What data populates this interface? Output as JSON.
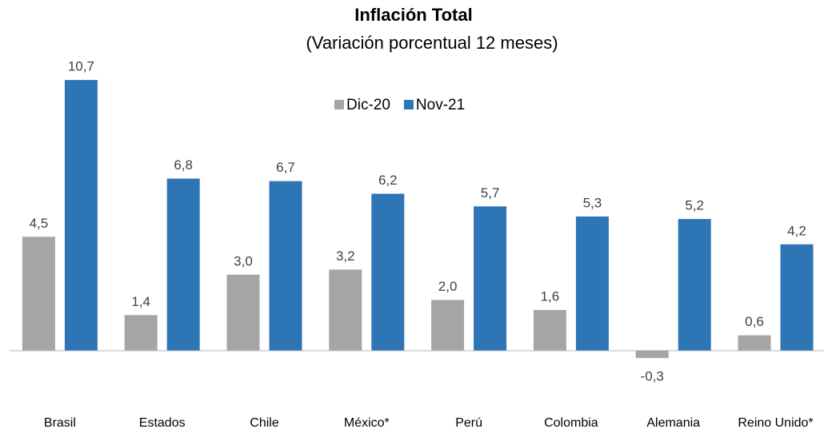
{
  "chart_data": {
    "type": "bar",
    "title": "Inflación Total",
    "subtitle": "(Variación porcentual 12 meses)",
    "categories": [
      "Brasil",
      "Estados",
      "Chile",
      "México*",
      "Perú",
      "Colombia",
      "Alemania",
      "Reino Unido*"
    ],
    "series": [
      {
        "name": "Dic-20",
        "color": "#a5a5a5",
        "values": [
          4.5,
          1.4,
          3.0,
          3.2,
          2.0,
          1.6,
          -0.3,
          0.6
        ],
        "value_labels": [
          "4,5",
          "1,4",
          "3,0",
          "3,2",
          "2,0",
          "1,6",
          "-0,3",
          "0,6"
        ]
      },
      {
        "name": "Nov-21",
        "color": "#2e75b6",
        "values": [
          10.7,
          6.8,
          6.7,
          6.2,
          5.7,
          5.3,
          5.2,
          4.2
        ],
        "value_labels": [
          "10,7",
          "6,8",
          "6,7",
          "6,2",
          "5,7",
          "5,3",
          "5,2",
          "4,2"
        ]
      }
    ],
    "ylim": [
      -2,
      12
    ],
    "legend": "top"
  }
}
